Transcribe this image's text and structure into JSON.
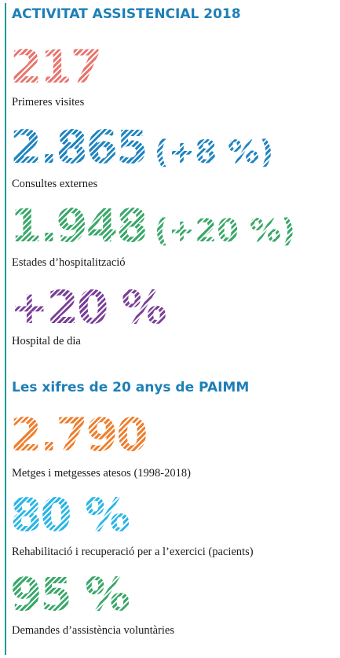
{
  "section1": {
    "title": "ACTIVITAT ASSISTENCIAL 2018",
    "stats": [
      {
        "value": "217",
        "extra": "",
        "label": "Primeres visites",
        "color": "#e8756e"
      },
      {
        "value": "2.865",
        "extra": "(+8 %)",
        "label": "Consultes externes",
        "color": "#1e84c0"
      },
      {
        "value": "1.948",
        "extra": "(+20 %)",
        "label": "Estades d’hospitalització",
        "color": "#3aa86a"
      },
      {
        "value": "+20 %",
        "extra": "",
        "label": "Hospital de dia",
        "color": "#7a3f98"
      }
    ]
  },
  "section2": {
    "title": "Les xifres de 20 anys de PAIMM",
    "stats": [
      {
        "value": "2.790",
        "extra": "",
        "label": "Metges i metgesses atesos (1998-2018)",
        "color": "#ee7f2d"
      },
      {
        "value": "80 %",
        "extra": "",
        "label": "Rehabilitació i recuperació per a l’exercici (pacients)",
        "color": "#29b6e6"
      },
      {
        "value": "95 %",
        "extra": "",
        "label": "Demandes d’assistència voluntàries",
        "color": "#3aa86a"
      }
    ]
  }
}
